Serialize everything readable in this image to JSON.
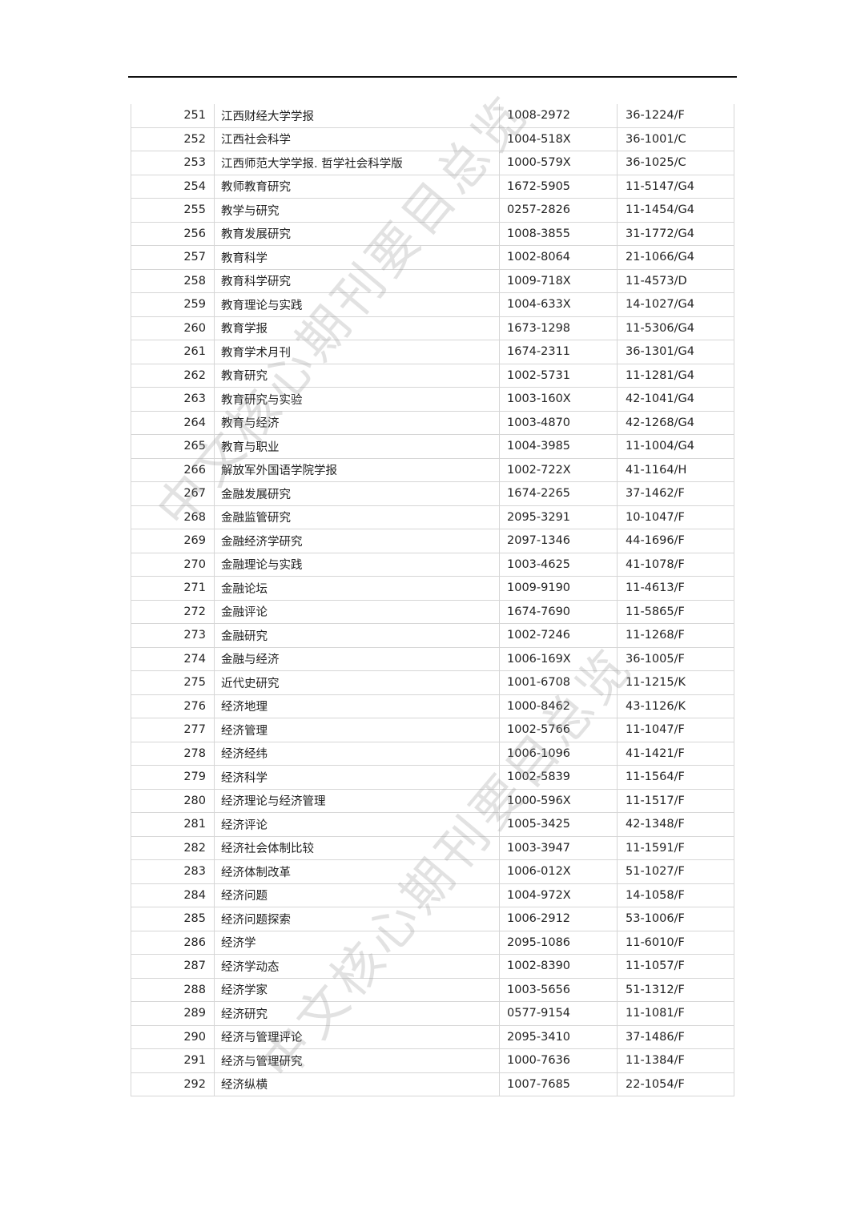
{
  "watermark": "中文核心期刊要目总览",
  "rows": [
    [
      "251",
      "江西财经大学学报",
      "1008-2972",
      "36-1224/F"
    ],
    [
      "252",
      "江西社会科学",
      "1004-518X",
      "36-1001/C"
    ],
    [
      "253",
      "江西师范大学学报. 哲学社会科学版",
      "1000-579X",
      "36-1025/C"
    ],
    [
      "254",
      "教师教育研究",
      "1672-5905",
      "11-5147/G4"
    ],
    [
      "255",
      "教学与研究",
      "0257-2826",
      "11-1454/G4"
    ],
    [
      "256",
      "教育发展研究",
      "1008-3855",
      "31-1772/G4"
    ],
    [
      "257",
      "教育科学",
      "1002-8064",
      "21-1066/G4"
    ],
    [
      "258",
      "教育科学研究",
      "1009-718X",
      "11-4573/D"
    ],
    [
      "259",
      "教育理论与实践",
      "1004-633X",
      "14-1027/G4"
    ],
    [
      "260",
      "教育学报",
      "1673-1298",
      "11-5306/G4"
    ],
    [
      "261",
      "教育学术月刊",
      "1674-2311",
      "36-1301/G4"
    ],
    [
      "262",
      "教育研究",
      "1002-5731",
      "11-1281/G4"
    ],
    [
      "263",
      "教育研究与实验",
      "1003-160X",
      "42-1041/G4"
    ],
    [
      "264",
      "教育与经济",
      "1003-4870",
      "42-1268/G4"
    ],
    [
      "265",
      "教育与职业",
      "1004-3985",
      "11-1004/G4"
    ],
    [
      "266",
      "解放军外国语学院学报",
      "1002-722X",
      "41-1164/H"
    ],
    [
      "267",
      "金融发展研究",
      "1674-2265",
      "37-1462/F"
    ],
    [
      "268",
      "金融监管研究",
      "2095-3291",
      "10-1047/F"
    ],
    [
      "269",
      "金融经济学研究",
      "2097-1346",
      "44-1696/F"
    ],
    [
      "270",
      "金融理论与实践",
      "1003-4625",
      "41-1078/F"
    ],
    [
      "271",
      "金融论坛",
      "1009-9190",
      "11-4613/F"
    ],
    [
      "272",
      "金融评论",
      "1674-7690",
      "11-5865/F"
    ],
    [
      "273",
      "金融研究",
      "1002-7246",
      "11-1268/F"
    ],
    [
      "274",
      "金融与经济",
      "1006-169X",
      "36-1005/F"
    ],
    [
      "275",
      "近代史研究",
      "1001-6708",
      "11-1215/K"
    ],
    [
      "276",
      "经济地理",
      "1000-8462",
      "43-1126/K"
    ],
    [
      "277",
      "经济管理",
      "1002-5766",
      "11-1047/F"
    ],
    [
      "278",
      "经济经纬",
      "1006-1096",
      "41-1421/F"
    ],
    [
      "279",
      "经济科学",
      "1002-5839",
      "11-1564/F"
    ],
    [
      "280",
      "经济理论与经济管理",
      "1000-596X",
      "11-1517/F"
    ],
    [
      "281",
      "经济评论",
      "1005-3425",
      "42-1348/F"
    ],
    [
      "282",
      "经济社会体制比较",
      "1003-3947",
      "11-1591/F"
    ],
    [
      "283",
      "经济体制改革",
      "1006-012X",
      "51-1027/F"
    ],
    [
      "284",
      "经济问题",
      "1004-972X",
      "14-1058/F"
    ],
    [
      "285",
      "经济问题探索",
      "1006-2912",
      "53-1006/F"
    ],
    [
      "286",
      "经济学",
      "2095-1086",
      "11-6010/F"
    ],
    [
      "287",
      "经济学动态",
      "1002-8390",
      "11-1057/F"
    ],
    [
      "288",
      "经济学家",
      "1003-5656",
      "51-1312/F"
    ],
    [
      "289",
      "经济研究",
      "0577-9154",
      "11-1081/F"
    ],
    [
      "290",
      "经济与管理评论",
      "2095-3410",
      "37-1486/F"
    ],
    [
      "291",
      "经济与管理研究",
      "1000-7636",
      "11-1384/F"
    ],
    [
      "292",
      "经济纵横",
      "1007-7685",
      "22-1054/F"
    ]
  ]
}
